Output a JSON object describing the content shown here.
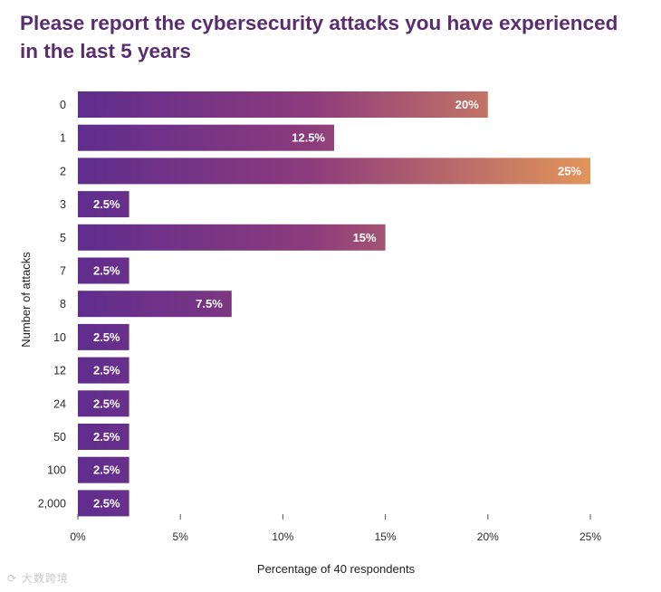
{
  "watermark": "⟳ 大数跨境",
  "chart_data": {
    "type": "bar",
    "orientation": "horizontal",
    "title": "Please report the cybersecurity attacks you have experienced in the last 5 years",
    "xlabel": "Percentage of 40 respondents",
    "ylabel": "Number of attacks",
    "categories": [
      "0",
      "1",
      "2",
      "3",
      "5",
      "7",
      "8",
      "10",
      "12",
      "24",
      "50",
      "100",
      "2,000"
    ],
    "values": [
      20,
      12.5,
      25,
      2.5,
      15,
      2.5,
      7.5,
      2.5,
      2.5,
      2.5,
      2.5,
      2.5,
      2.5
    ],
    "value_labels": [
      "20%",
      "12.5%",
      "25%",
      "2.5%",
      "15%",
      "2.5%",
      "7.5%",
      "2.5%",
      "2.5%",
      "2.5%",
      "2.5%",
      "2.5%",
      "2.5%"
    ],
    "xlim": [
      0,
      25
    ],
    "xticks": [
      0,
      5,
      10,
      15,
      20,
      25
    ],
    "xtick_labels": [
      "0%",
      "5%",
      "10%",
      "15%",
      "20%",
      "25%"
    ],
    "grid": false,
    "colors": {
      "start": "#5f2d8e",
      "mid": "#8c3b7c",
      "end": "#e2955a",
      "text": "#2b2b2b",
      "title": "#5a2d6f"
    }
  }
}
